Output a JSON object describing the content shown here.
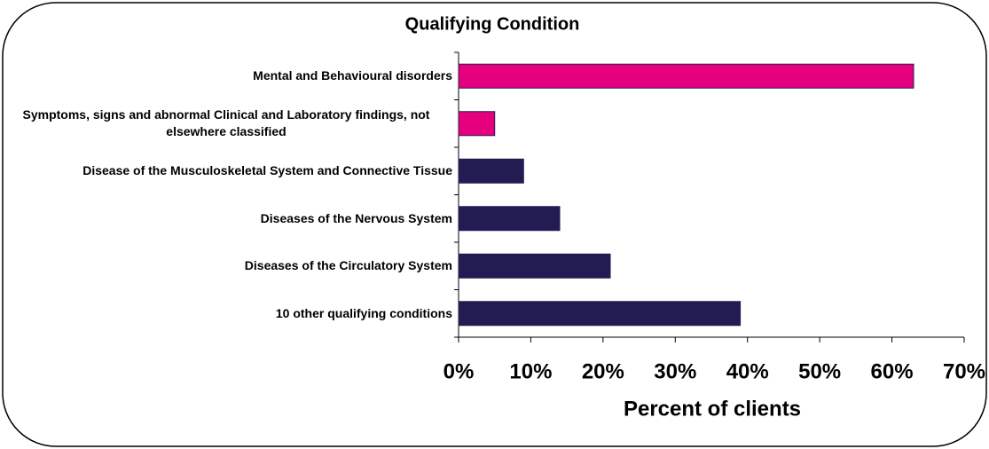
{
  "chart_data": {
    "type": "barh",
    "title": "Qualifying Condition",
    "categories": [
      "Mental and Behavioural disorders",
      "Symptoms, signs and abnormal Clinical and Laboratory findings, not elsewhere classified",
      "Disease of the Musculoskeletal System and Connective Tissue",
      "Diseases of the Nervous System",
      "Diseases of the Circulatory System",
      "10 other qualifying conditions"
    ],
    "values": [
      63,
      5,
      9,
      14,
      21,
      39
    ],
    "colors": [
      "#e6007e",
      "#e6007e",
      "#221c52",
      "#221c52",
      "#221c52",
      "#221c52"
    ],
    "xlabel": "Percent of clients",
    "xlim": [
      0,
      70
    ],
    "xticks": [
      {
        "value": 0,
        "label": "0%"
      },
      {
        "value": 10,
        "label": "10%"
      },
      {
        "value": 20,
        "label": "20%"
      },
      {
        "value": 30,
        "label": "30%"
      },
      {
        "value": 40,
        "label": "40%"
      },
      {
        "value": 50,
        "label": "50%"
      },
      {
        "value": 60,
        "label": "60%"
      },
      {
        "value": 70,
        "label": "70%"
      }
    ]
  }
}
